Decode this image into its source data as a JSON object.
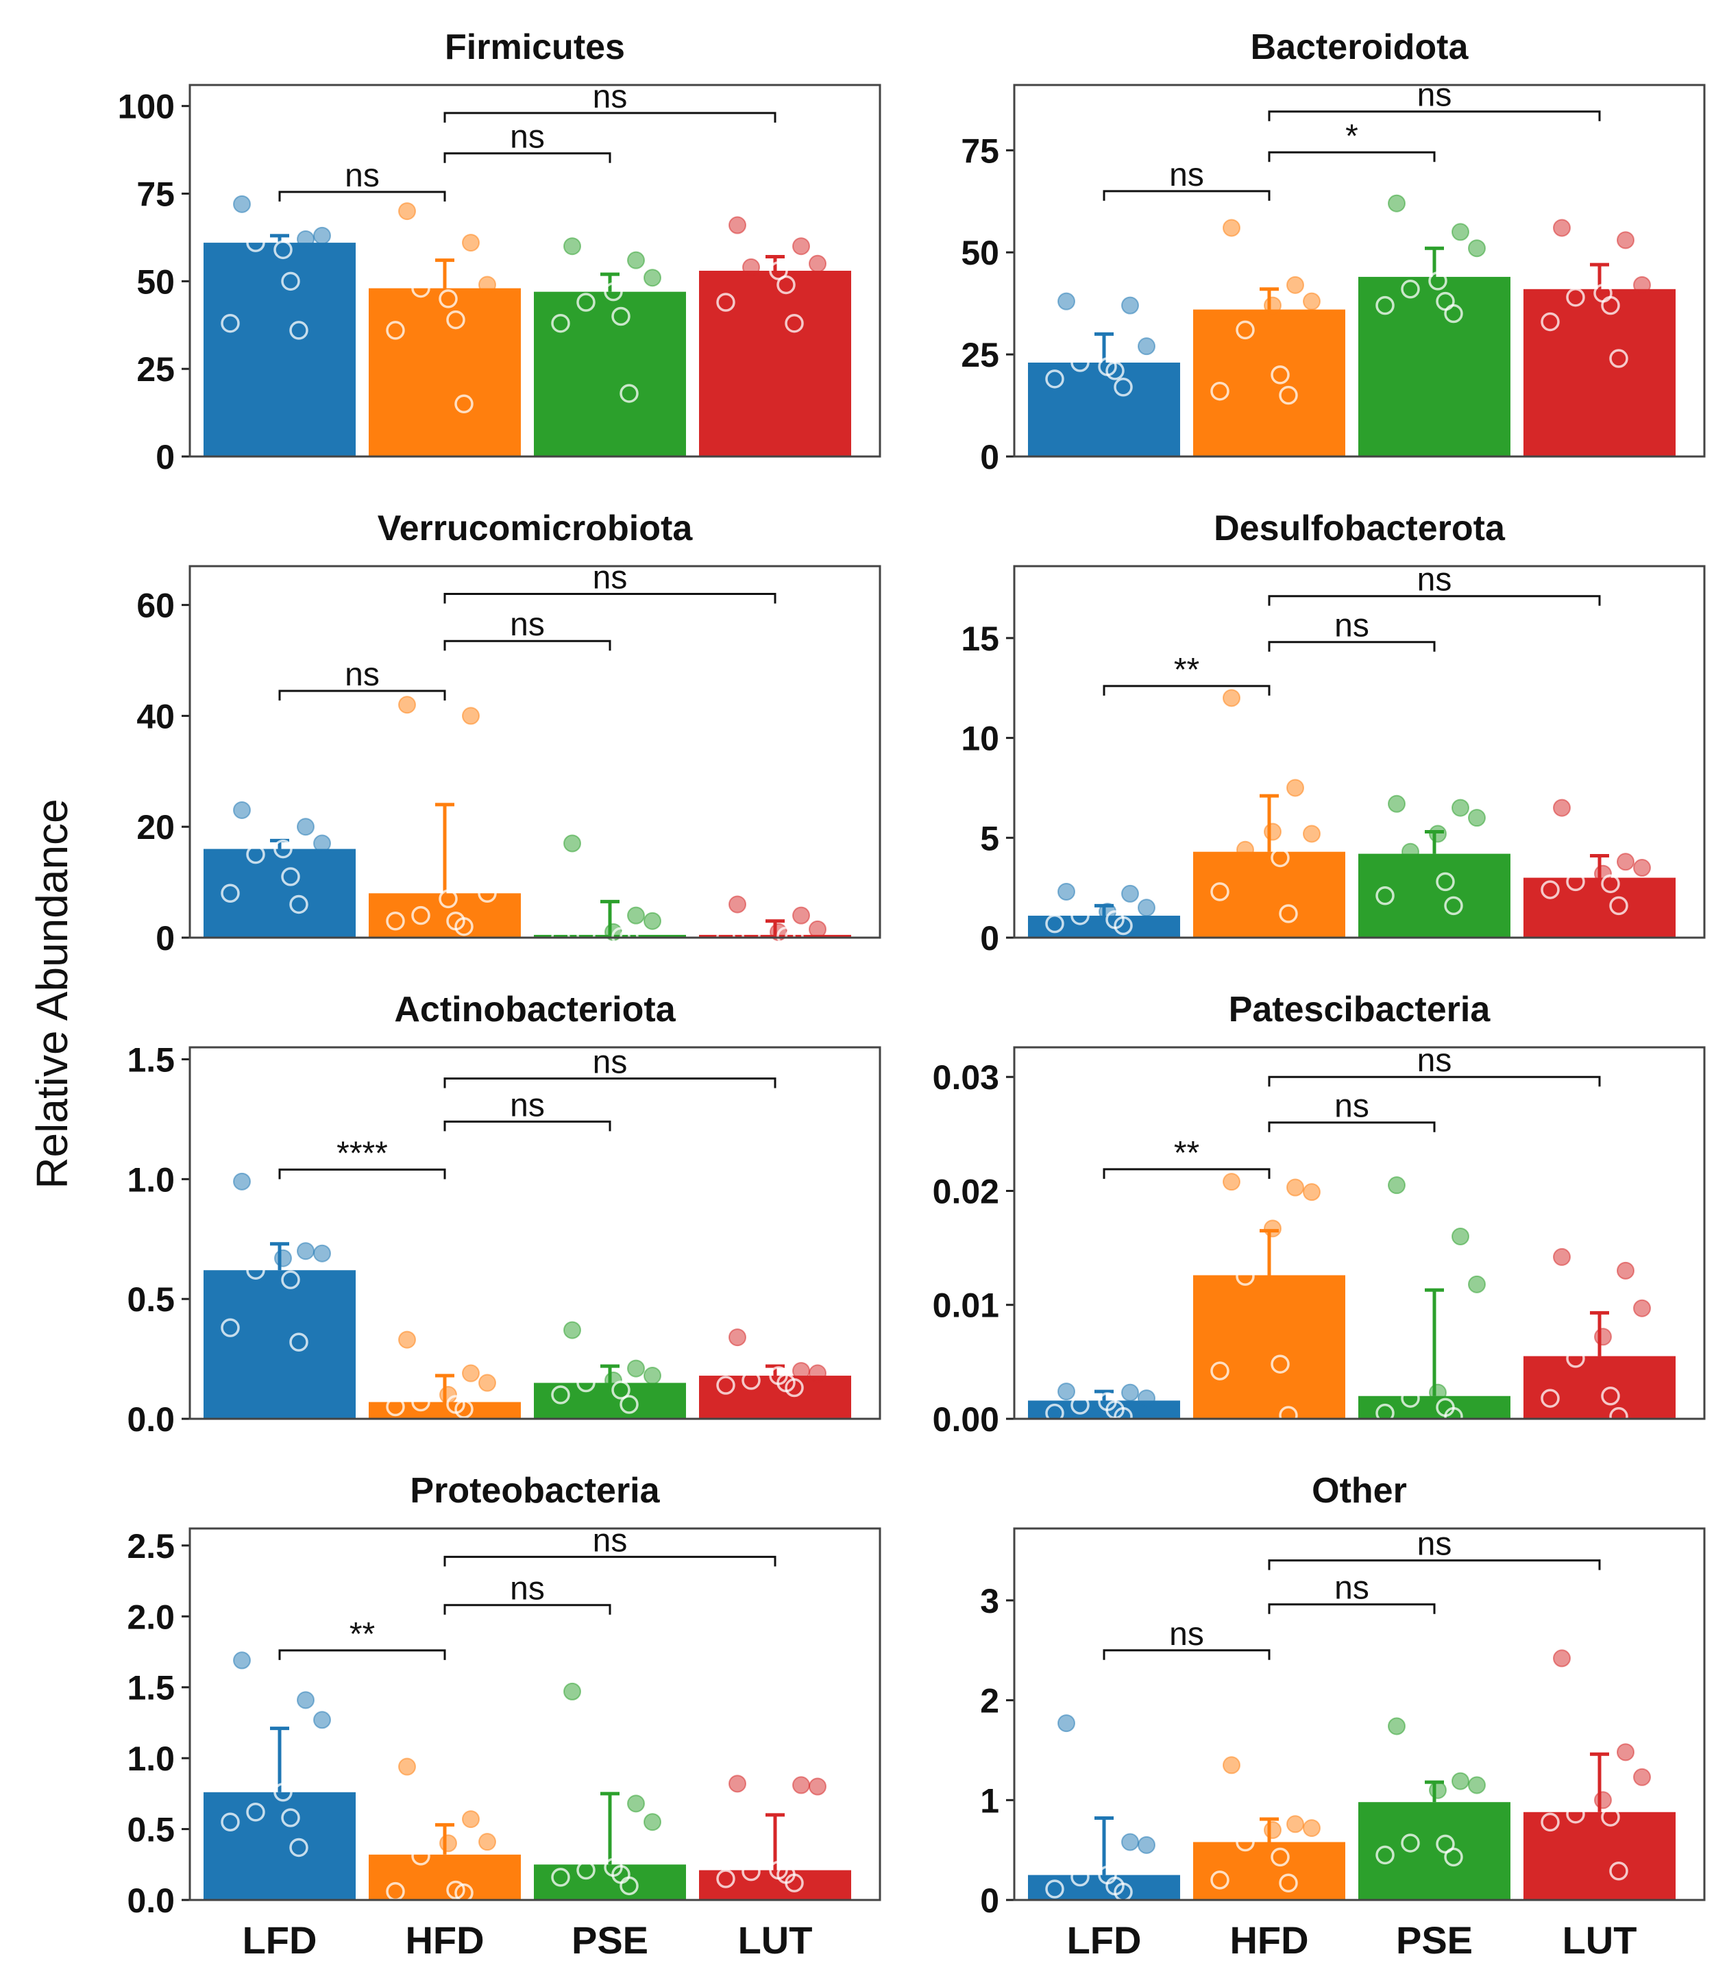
{
  "ylabel": "Relative Abundance",
  "groups": [
    "LFD",
    "HFD",
    "PSE",
    "LUT"
  ],
  "colors": [
    "#1f77b4",
    "#ff7f0e",
    "#2ca02c",
    "#d62728"
  ],
  "chart_data": [
    {
      "type": "bar",
      "title": "Firmicutes",
      "categories": [
        "LFD",
        "HFD",
        "PSE",
        "LUT"
      ],
      "values": [
        61,
        48,
        47,
        53
      ],
      "errors": [
        2,
        8,
        5,
        4
      ],
      "ylim": [
        0,
        106
      ],
      "yticks": [
        0,
        25,
        50,
        75,
        100
      ],
      "ytick_labels": [
        "0",
        "25",
        "50",
        "75",
        "100"
      ],
      "points": [
        [
          72,
          62,
          63,
          59,
          61,
          50,
          38,
          36
        ],
        [
          70,
          61,
          49,
          45,
          48,
          39,
          36,
          15
        ],
        [
          60,
          56,
          51,
          47,
          44,
          40,
          38,
          18
        ],
        [
          66,
          60,
          55,
          53,
          54,
          49,
          44,
          38
        ]
      ],
      "comparisons": [
        {
          "groups": [
            "LFD",
            "HFD"
          ],
          "label": "ns",
          "y": 75.5
        },
        {
          "groups": [
            "HFD",
            "PSE"
          ],
          "label": "ns",
          "y": 86.5
        },
        {
          "groups": [
            "HFD",
            "LUT"
          ],
          "label": "ns",
          "y": 98
        }
      ]
    },
    {
      "type": "bar",
      "title": "Bacteroidota",
      "categories": [
        "LFD",
        "HFD",
        "PSE",
        "LUT"
      ],
      "values": [
        23,
        36,
        44,
        41
      ],
      "errors": [
        7,
        5,
        7,
        6
      ],
      "ylim": [
        0,
        91
      ],
      "yticks": [
        0,
        25,
        50,
        75
      ],
      "ytick_labels": [
        "0",
        "25",
        "50",
        "75"
      ],
      "points": [
        [
          38,
          37,
          27,
          22,
          23,
          21,
          19,
          17
        ],
        [
          56,
          42,
          38,
          37,
          31,
          20,
          16,
          15
        ],
        [
          62,
          55,
          51,
          43,
          41,
          38,
          37,
          35
        ],
        [
          56,
          53,
          42,
          40,
          39,
          37,
          33,
          24
        ]
      ],
      "comparisons": [
        {
          "groups": [
            "LFD",
            "HFD"
          ],
          "label": "ns",
          "y": 65
        },
        {
          "groups": [
            "HFD",
            "PSE"
          ],
          "label": "*",
          "y": 74.5
        },
        {
          "groups": [
            "HFD",
            "LUT"
          ],
          "label": "ns",
          "y": 84.5
        }
      ]
    },
    {
      "type": "bar",
      "title": "Verrucomicrobiota",
      "categories": [
        "LFD",
        "HFD",
        "PSE",
        "LUT"
      ],
      "values": [
        16,
        8,
        0.5,
        0.5
      ],
      "errors": [
        1.5,
        16,
        6,
        2.5
      ],
      "ylim": [
        0,
        67
      ],
      "yticks": [
        0,
        20,
        40,
        60
      ],
      "ytick_labels": [
        "0",
        "20",
        "40",
        "60"
      ],
      "points": [
        [
          23,
          20,
          17,
          16,
          15,
          11,
          8,
          6
        ],
        [
          42,
          40,
          8,
          7,
          4,
          3,
          3,
          2
        ],
        [
          17,
          4,
          3,
          1,
          0.5,
          0.2,
          0.1,
          0.1
        ],
        [
          6,
          4,
          1.5,
          1,
          0.5,
          0.3,
          0.2,
          0.1
        ]
      ],
      "comparisons": [
        {
          "groups": [
            "LFD",
            "HFD"
          ],
          "label": "ns",
          "y": 44.5
        },
        {
          "groups": [
            "HFD",
            "PSE"
          ],
          "label": "ns",
          "y": 53.5
        },
        {
          "groups": [
            "HFD",
            "LUT"
          ],
          "label": "ns",
          "y": 62
        }
      ]
    },
    {
      "type": "bar",
      "title": "Desulfobacterota",
      "categories": [
        "LFD",
        "HFD",
        "PSE",
        "LUT"
      ],
      "values": [
        1.1,
        4.3,
        4.2,
        3.0
      ],
      "errors": [
        0.5,
        2.8,
        1.1,
        1.1
      ],
      "ylim": [
        0,
        18.6
      ],
      "yticks": [
        0,
        5,
        10,
        15
      ],
      "ytick_labels": [
        "0",
        "5",
        "10",
        "15"
      ],
      "points": [
        [
          2.3,
          2.2,
          1.5,
          1.3,
          1.1,
          0.9,
          0.7,
          0.6
        ],
        [
          12,
          7.5,
          5.2,
          5.3,
          4.4,
          4.0,
          2.3,
          1.2
        ],
        [
          6.7,
          6.5,
          6.0,
          5.2,
          4.3,
          2.8,
          2.1,
          1.6
        ],
        [
          6.5,
          3.8,
          3.5,
          3.2,
          2.8,
          2.7,
          2.4,
          1.6
        ]
      ],
      "comparisons": [
        {
          "groups": [
            "LFD",
            "HFD"
          ],
          "label": "**",
          "y": 12.6
        },
        {
          "groups": [
            "HFD",
            "PSE"
          ],
          "label": "ns",
          "y": 14.8
        },
        {
          "groups": [
            "HFD",
            "LUT"
          ],
          "label": "ns",
          "y": 17.1
        }
      ]
    },
    {
      "type": "bar",
      "title": "Actinobacteriota",
      "categories": [
        "LFD",
        "HFD",
        "PSE",
        "LUT"
      ],
      "values": [
        0.62,
        0.07,
        0.15,
        0.18
      ],
      "errors": [
        0.11,
        0.11,
        0.07,
        0.04
      ],
      "ylim": [
        0,
        1.55
      ],
      "yticks": [
        0,
        0.5,
        1.0,
        1.5
      ],
      "ytick_labels": [
        "0.0",
        "0.5",
        "1.0",
        "1.5"
      ],
      "points": [
        [
          0.99,
          0.7,
          0.69,
          0.67,
          0.62,
          0.58,
          0.38,
          0.32
        ],
        [
          0.33,
          0.19,
          0.15,
          0.1,
          0.07,
          0.06,
          0.05,
          0.04
        ],
        [
          0.37,
          0.21,
          0.18,
          0.16,
          0.15,
          0.12,
          0.1,
          0.06
        ],
        [
          0.34,
          0.2,
          0.19,
          0.18,
          0.16,
          0.15,
          0.14,
          0.13
        ]
      ],
      "comparisons": [
        {
          "groups": [
            "LFD",
            "HFD"
          ],
          "label": "****",
          "y": 1.04
        },
        {
          "groups": [
            "HFD",
            "PSE"
          ],
          "label": "ns",
          "y": 1.24
        },
        {
          "groups": [
            "HFD",
            "LUT"
          ],
          "label": "ns",
          "y": 1.42
        }
      ]
    },
    {
      "type": "bar",
      "title": "Patescibacteria",
      "categories": [
        "LFD",
        "HFD",
        "PSE",
        "LUT"
      ],
      "values": [
        0.0016,
        0.0126,
        0.002,
        0.0055
      ],
      "errors": [
        0.0008,
        0.0039,
        0.0093,
        0.0038
      ],
      "ylim": [
        0,
        0.0326
      ],
      "yticks": [
        0,
        0.01,
        0.02,
        0.03
      ],
      "ytick_labels": [
        "0.00",
        "0.01",
        "0.02",
        "0.03"
      ],
      "points": [
        [
          0.0024,
          0.0023,
          0.0018,
          0.0015,
          0.0012,
          0.0008,
          0.0005,
          0.0002
        ],
        [
          0.0208,
          0.0203,
          0.0199,
          0.0167,
          0.0125,
          0.0048,
          0.0042,
          0.0003
        ],
        [
          0.0205,
          0.016,
          0.0118,
          0.0023,
          0.0018,
          0.001,
          0.0005,
          0.0002
        ],
        [
          0.0142,
          0.013,
          0.0097,
          0.0072,
          0.0053,
          0.002,
          0.0018,
          0.0002
        ]
      ],
      "comparisons": [
        {
          "groups": [
            "LFD",
            "HFD"
          ],
          "label": "**",
          "y": 0.0219
        },
        {
          "groups": [
            "HFD",
            "PSE"
          ],
          "label": "ns",
          "y": 0.026
        },
        {
          "groups": [
            "HFD",
            "LUT"
          ],
          "label": "ns",
          "y": 0.03
        }
      ]
    },
    {
      "type": "bar",
      "title": "Proteobacteria",
      "categories": [
        "LFD",
        "HFD",
        "PSE",
        "LUT"
      ],
      "values": [
        0.76,
        0.32,
        0.25,
        0.21
      ],
      "errors": [
        0.45,
        0.21,
        0.5,
        0.39
      ],
      "ylim": [
        0,
        2.62
      ],
      "yticks": [
        0,
        0.5,
        1.0,
        1.5,
        2.0,
        2.5
      ],
      "ytick_labels": [
        "0.0",
        "0.5",
        "1.0",
        "1.5",
        "2.0",
        "2.5"
      ],
      "points": [
        [
          1.69,
          1.41,
          1.27,
          0.76,
          0.62,
          0.58,
          0.55,
          0.37
        ],
        [
          0.94,
          0.57,
          0.41,
          0.4,
          0.31,
          0.07,
          0.06,
          0.05
        ],
        [
          1.47,
          0.68,
          0.55,
          0.23,
          0.21,
          0.18,
          0.16,
          0.1
        ],
        [
          0.82,
          0.81,
          0.8,
          0.21,
          0.2,
          0.18,
          0.15,
          0.12
        ]
      ],
      "comparisons": [
        {
          "groups": [
            "LFD",
            "HFD"
          ],
          "label": "**",
          "y": 1.76
        },
        {
          "groups": [
            "HFD",
            "PSE"
          ],
          "label": "ns",
          "y": 2.08
        },
        {
          "groups": [
            "HFD",
            "LUT"
          ],
          "label": "ns",
          "y": 2.42
        }
      ]
    },
    {
      "type": "bar",
      "title": "Other",
      "categories": [
        "LFD",
        "HFD",
        "PSE",
        "LUT"
      ],
      "values": [
        0.25,
        0.58,
        0.98,
        0.88
      ],
      "errors": [
        0.57,
        0.23,
        0.2,
        0.58
      ],
      "ylim": [
        0,
        3.72
      ],
      "yticks": [
        0,
        1,
        2,
        3
      ],
      "ytick_labels": [
        "0",
        "1",
        "2",
        "3"
      ],
      "points": [
        [
          1.77,
          0.58,
          0.55,
          0.25,
          0.23,
          0.14,
          0.11,
          0.08
        ],
        [
          1.35,
          0.76,
          0.72,
          0.7,
          0.58,
          0.43,
          0.2,
          0.17
        ],
        [
          1.74,
          1.19,
          1.15,
          1.1,
          0.57,
          0.56,
          0.45,
          0.43
        ],
        [
          2.42,
          1.48,
          1.23,
          1.0,
          0.86,
          0.83,
          0.78,
          0.29
        ]
      ],
      "comparisons": [
        {
          "groups": [
            "LFD",
            "HFD"
          ],
          "label": "ns",
          "y": 2.5
        },
        {
          "groups": [
            "HFD",
            "PSE"
          ],
          "label": "ns",
          "y": 2.96
        },
        {
          "groups": [
            "HFD",
            "LUT"
          ],
          "label": "ns",
          "y": 3.4
        }
      ]
    }
  ]
}
